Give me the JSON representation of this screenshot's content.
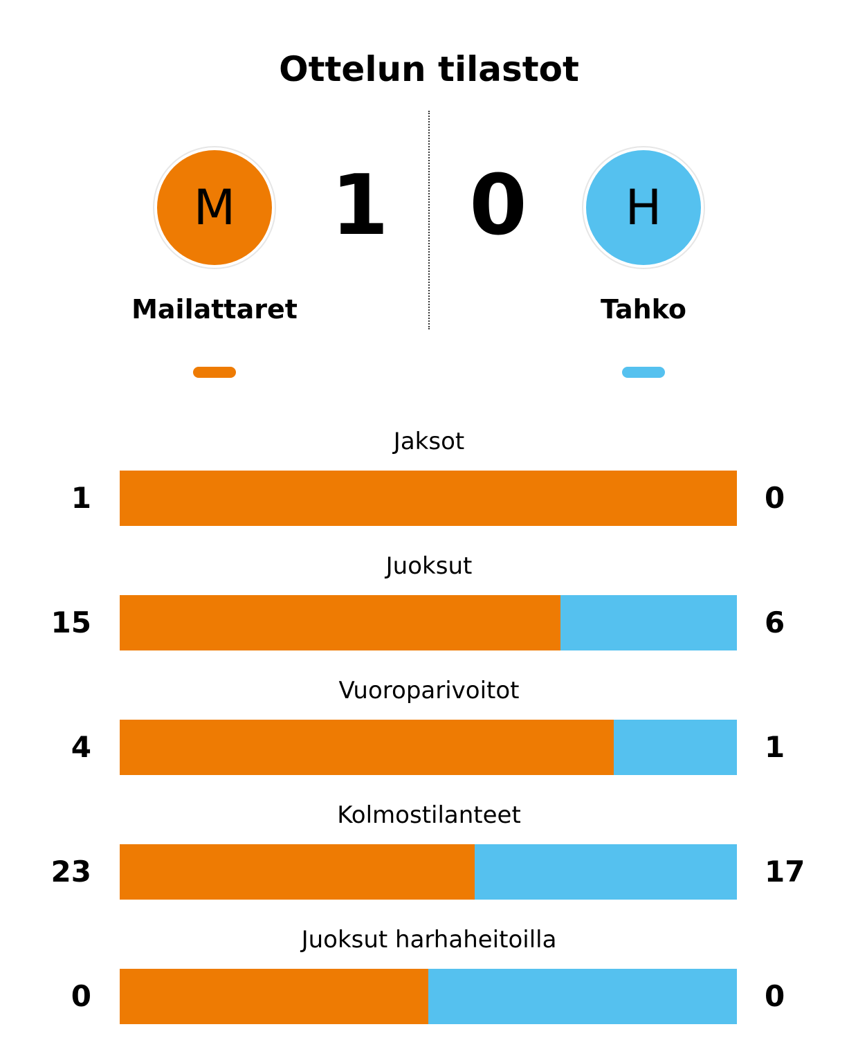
{
  "title": "Ottelun tilastot",
  "colors": {
    "home": "#ee7b03",
    "away": "#55c1ef"
  },
  "home": {
    "initial": "M",
    "name": "Mailattaret",
    "score": "1"
  },
  "away": {
    "initial": "H",
    "name": "Tahko",
    "score": "0"
  },
  "stats": [
    {
      "label": "Jaksot",
      "home": 1,
      "away": 0
    },
    {
      "label": "Juoksut",
      "home": 15,
      "away": 6
    },
    {
      "label": "Vuoroparivoitot",
      "home": 4,
      "away": 1
    },
    {
      "label": "Kolmostilanteet",
      "home": 23,
      "away": 17
    },
    {
      "label": "Juoksut harhaheitoilla",
      "home": 0,
      "away": 0
    }
  ]
}
